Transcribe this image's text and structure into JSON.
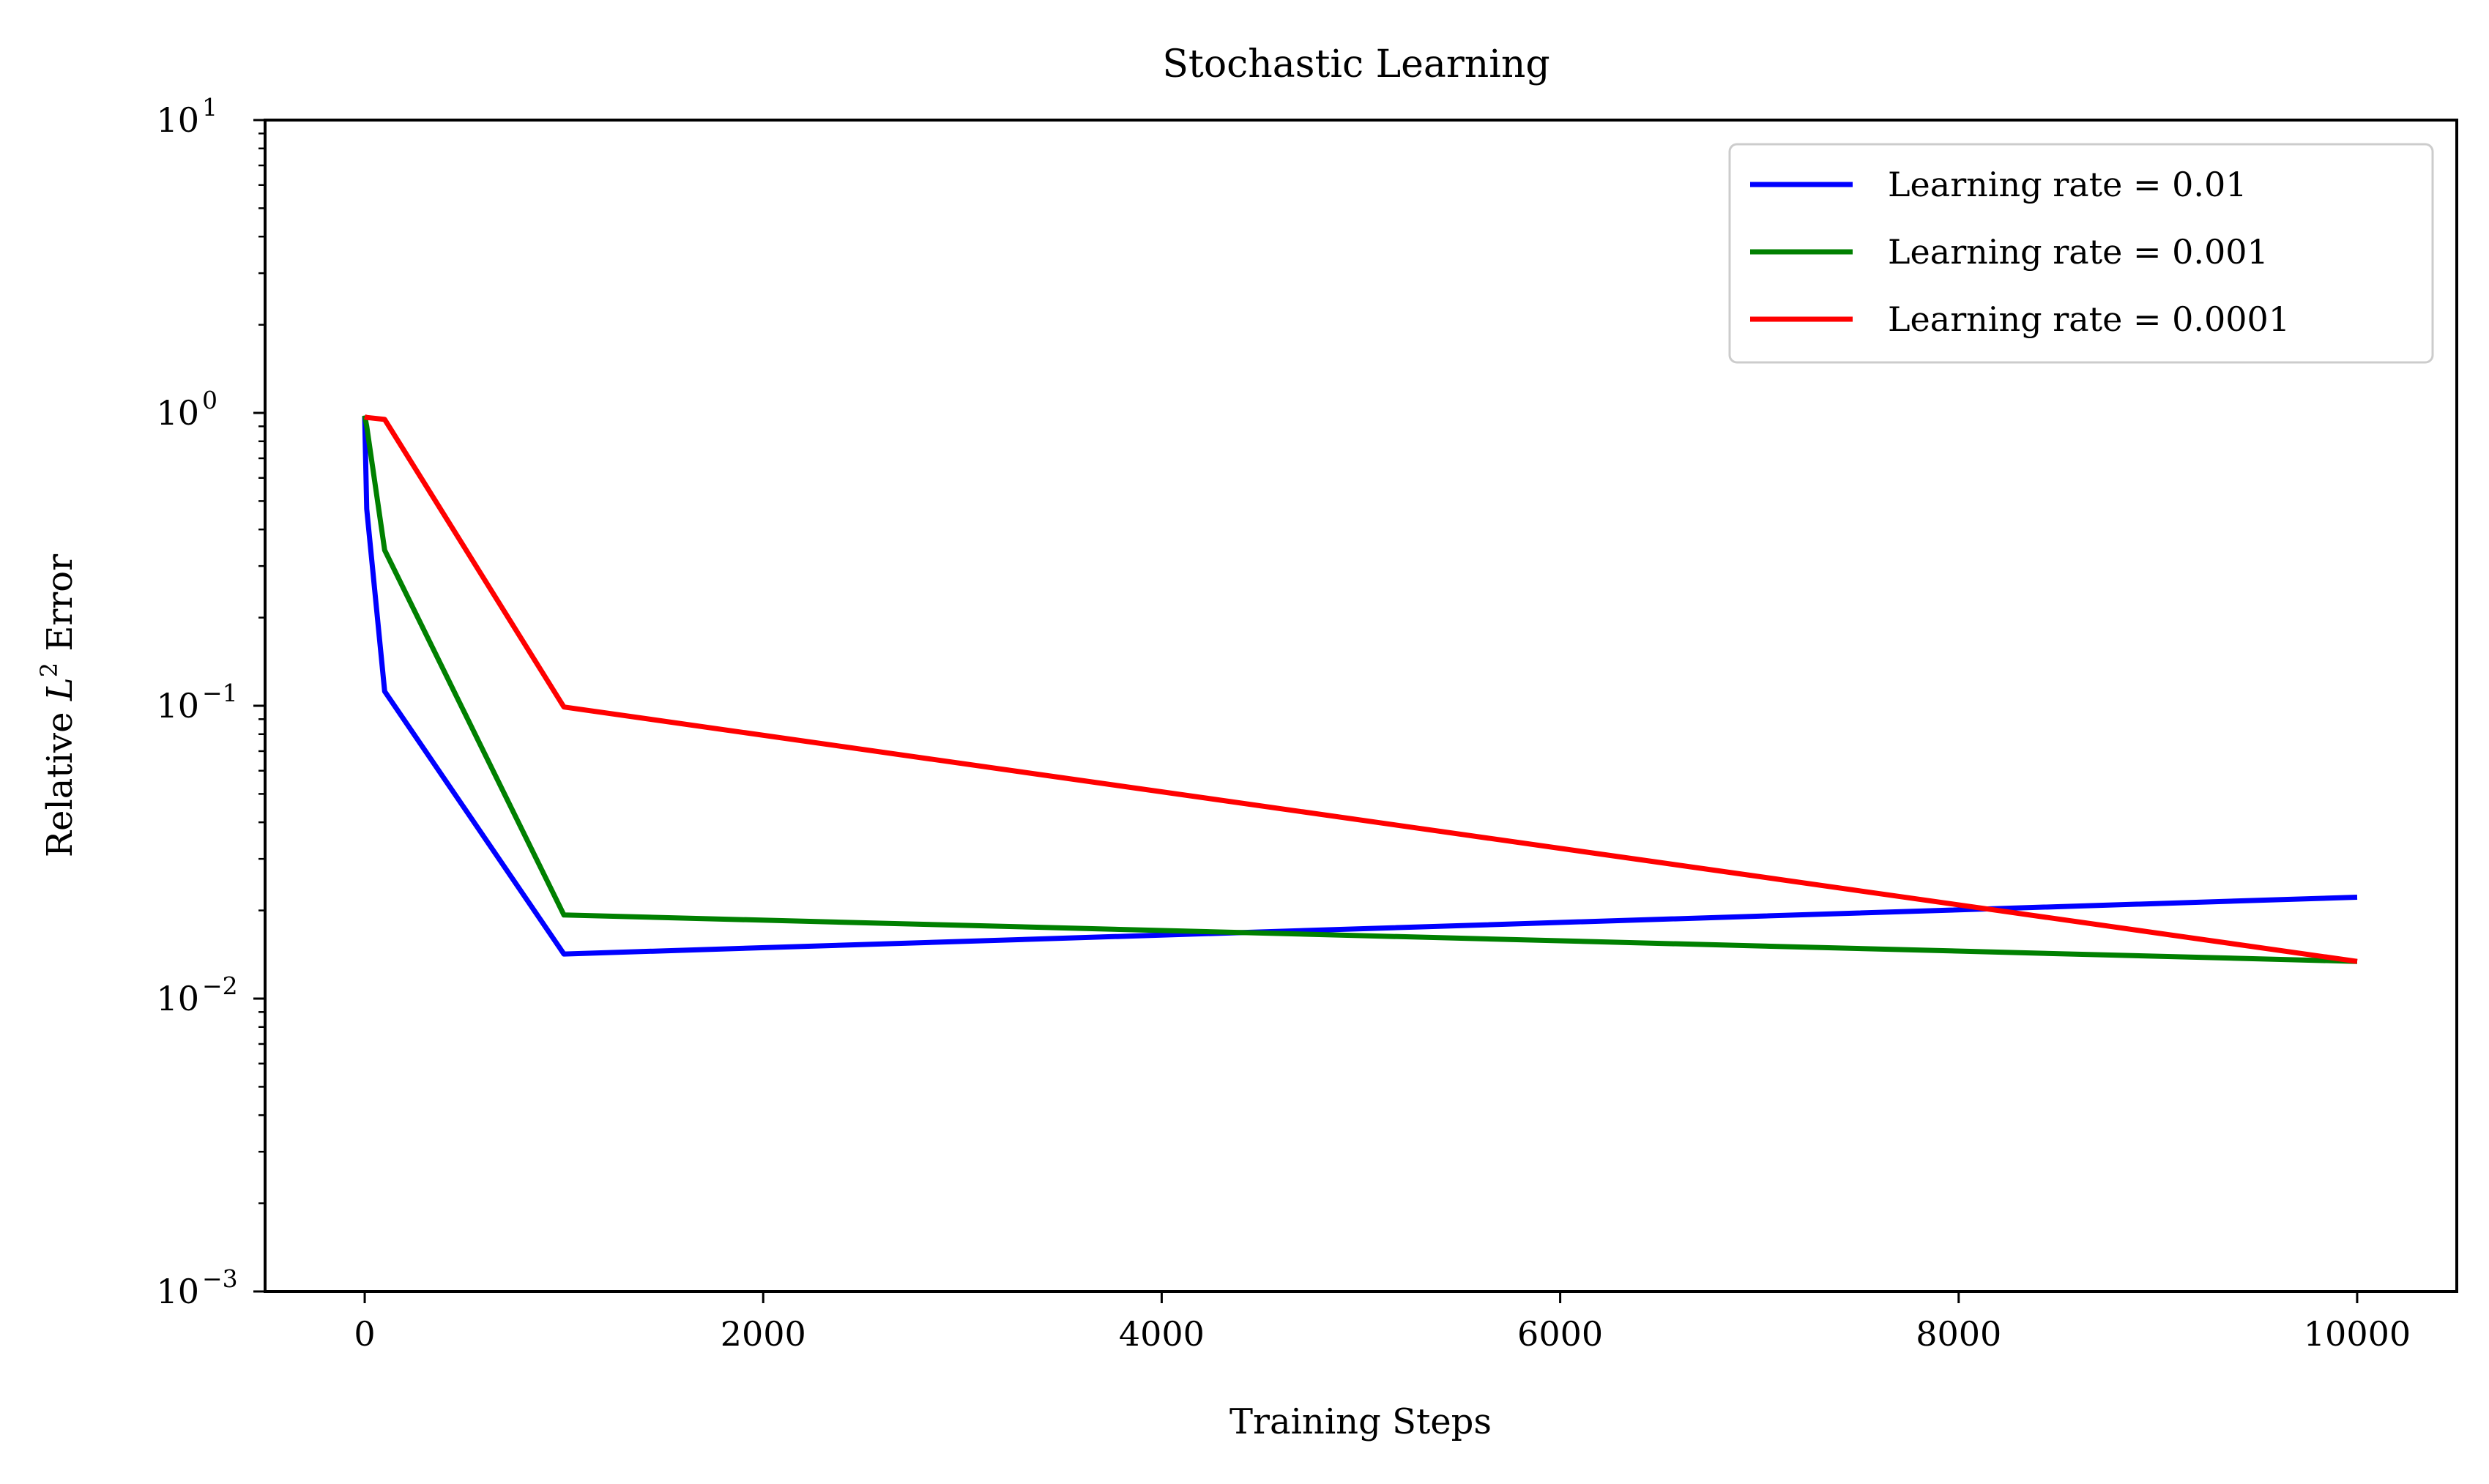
{
  "chart_data": {
    "type": "line",
    "title": "Stochastic Learning",
    "xlabel": "Training Steps",
    "ylabel_prefix": "Relative ",
    "ylabel_var": "L",
    "ylabel_exp": "2",
    "ylabel_suffix": " Error",
    "xlim": [
      -500,
      10500
    ],
    "ylim": [
      0.001,
      10
    ],
    "yscale": "log",
    "grid": false,
    "legend_position": "top-right",
    "x_ticks": [
      {
        "value": 0,
        "label": "0"
      },
      {
        "value": 2000,
        "label": "2000"
      },
      {
        "value": 4000,
        "label": "4000"
      },
      {
        "value": 6000,
        "label": "6000"
      },
      {
        "value": 8000,
        "label": "8000"
      },
      {
        "value": 10000,
        "label": "10000"
      }
    ],
    "y_ticks": [
      {
        "value": 0.001,
        "base": "10",
        "exp": "−3"
      },
      {
        "value": 0.01,
        "base": "10",
        "exp": "−2"
      },
      {
        "value": 0.1,
        "base": "10",
        "exp": "−1"
      },
      {
        "value": 1,
        "base": "10",
        "exp": "0"
      },
      {
        "value": 10,
        "base": "10",
        "exp": "1"
      }
    ],
    "series": [
      {
        "name": "Learning rate = 0.01",
        "color": "#0000ff",
        "x": [
          0,
          10,
          100,
          1000,
          10000
        ],
        "y": [
          0.97,
          0.47,
          0.112,
          0.0142,
          0.0222
        ]
      },
      {
        "name": "Learning rate = 0.001",
        "color": "#008000",
        "x": [
          0,
          10,
          100,
          1000,
          10000
        ],
        "y": [
          0.98,
          0.9,
          0.34,
          0.0193,
          0.0134
        ]
      },
      {
        "name": "Learning rate = 0.0001",
        "color": "#ff0000",
        "x": [
          0,
          10,
          100,
          1000,
          10000
        ],
        "y": [
          0.97,
          0.965,
          0.95,
          0.099,
          0.0134
        ]
      }
    ]
  }
}
